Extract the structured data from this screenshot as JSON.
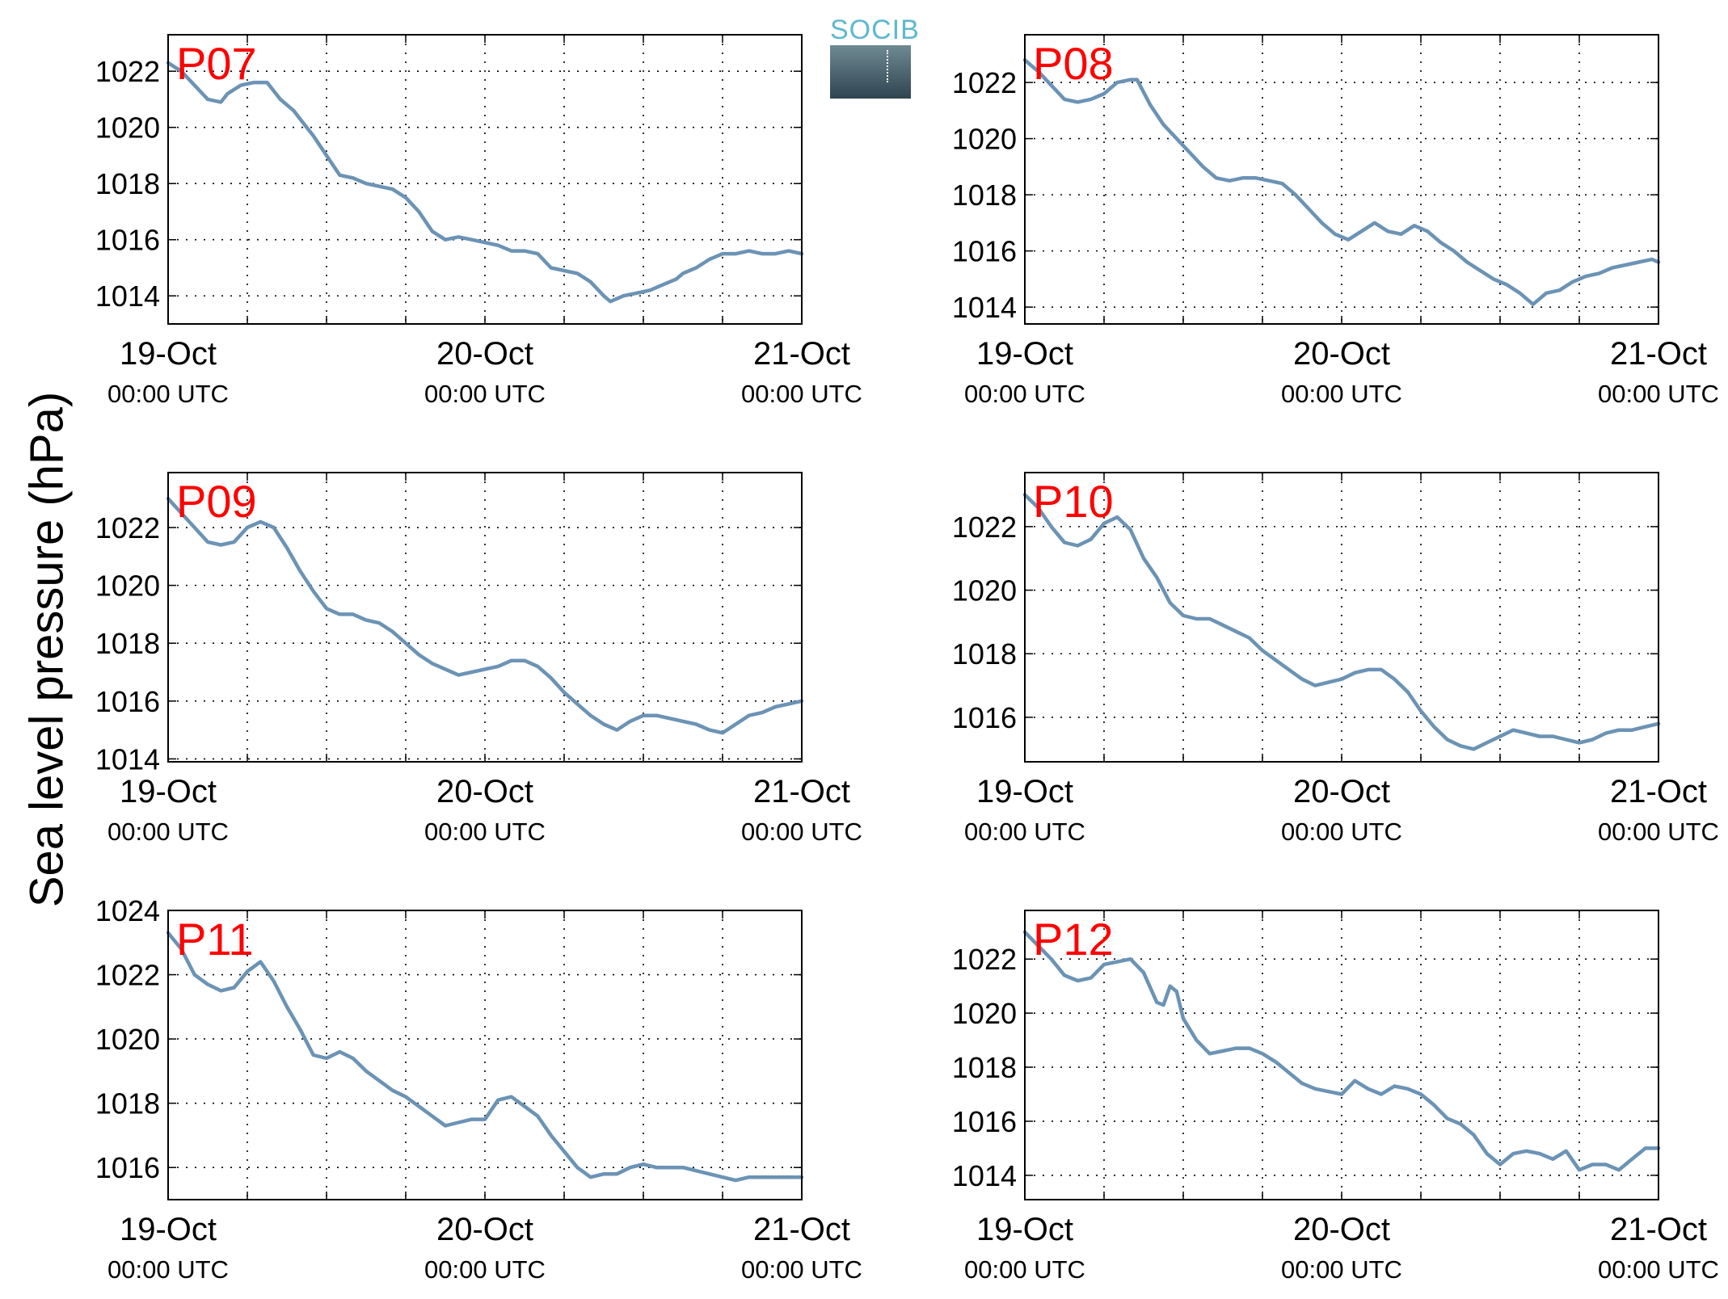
{
  "ylabel": "Sea level pressure (hPa)",
  "logo": {
    "text": "SOCIB"
  },
  "chart_data": [
    {
      "type": "line",
      "station": "P07",
      "ylim": [
        1013,
        1023.3
      ],
      "yticks": [
        "1014",
        "1016",
        "1018",
        "1020",
        "1022"
      ],
      "xticks": [
        {
          "date": "19-Oct",
          "time": "00:00 UTC"
        },
        {
          "date": "20-Oct",
          "time": "00:00 UTC"
        },
        {
          "date": "21-Oct",
          "time": "00:00 UTC"
        }
      ],
      "grid": true,
      "x_hours": [
        0,
        2,
        4,
        6,
        8,
        9,
        11,
        13,
        15,
        17,
        19,
        20,
        22,
        24,
        26,
        28,
        30,
        32,
        34,
        36,
        38,
        40,
        42,
        44,
        46,
        48,
        50,
        52,
        54,
        56,
        58,
        60,
        62,
        64,
        66,
        67,
        69,
        71,
        73,
        75,
        77,
        78,
        80,
        82,
        84,
        86,
        88,
        90,
        92,
        94,
        96
      ],
      "values": [
        1022.3,
        1022.0,
        1021.5,
        1021.0,
        1020.9,
        1021.2,
        1021.5,
        1021.6,
        1021.6,
        1021.0,
        1020.6,
        1020.3,
        1019.7,
        1019.0,
        1018.3,
        1018.2,
        1018.0,
        1017.9,
        1017.8,
        1017.5,
        1017.0,
        1016.3,
        1016.0,
        1016.1,
        1016.0,
        1015.9,
        1015.8,
        1015.6,
        1015.6,
        1015.5,
        1015.0,
        1014.9,
        1014.8,
        1014.5,
        1014.0,
        1013.8,
        1014.0,
        1014.1,
        1014.2,
        1014.4,
        1014.6,
        1014.8,
        1015.0,
        1015.3,
        1015.5,
        1015.5,
        1015.6,
        1015.5,
        1015.5,
        1015.6,
        1015.5
      ]
    },
    {
      "type": "line",
      "station": "P08",
      "ylim": [
        1013.4,
        1023.7
      ],
      "yticks": [
        "1014",
        "1016",
        "1018",
        "1020",
        "1022"
      ],
      "xticks": [
        {
          "date": "19-Oct",
          "time": "00:00 UTC"
        },
        {
          "date": "20-Oct",
          "time": "00:00 UTC"
        },
        {
          "date": "21-Oct",
          "time": "00:00 UTC"
        }
      ],
      "grid": true,
      "x_hours": [
        0,
        2,
        4,
        6,
        8,
        10,
        12,
        14,
        16,
        17,
        19,
        21,
        23,
        25,
        27,
        29,
        31,
        33,
        35,
        37,
        39,
        41,
        43,
        45,
        47,
        49,
        51,
        53,
        55,
        57,
        59,
        61,
        63,
        65,
        67,
        69,
        71,
        73,
        75,
        77,
        79,
        81,
        83,
        85,
        87,
        89,
        91,
        93,
        95,
        96
      ],
      "values": [
        1022.8,
        1022.4,
        1021.9,
        1021.4,
        1021.3,
        1021.4,
        1021.6,
        1022.0,
        1022.1,
        1022.1,
        1021.2,
        1020.5,
        1020.0,
        1019.5,
        1019.0,
        1018.6,
        1018.5,
        1018.6,
        1018.6,
        1018.5,
        1018.4,
        1018.0,
        1017.5,
        1017.0,
        1016.6,
        1016.4,
        1016.7,
        1017.0,
        1016.7,
        1016.6,
        1016.9,
        1016.7,
        1016.3,
        1016.0,
        1015.6,
        1015.3,
        1015.0,
        1014.8,
        1014.5,
        1014.1,
        1014.5,
        1014.6,
        1014.9,
        1015.1,
        1015.2,
        1015.4,
        1015.5,
        1015.6,
        1015.7,
        1015.6
      ]
    },
    {
      "type": "line",
      "station": "P09",
      "ylim": [
        1013.9,
        1023.9
      ],
      "yticks": [
        "1014",
        "1016",
        "1018",
        "1020",
        "1022"
      ],
      "xticks": [
        {
          "date": "19-Oct",
          "time": "00:00 UTC"
        },
        {
          "date": "20-Oct",
          "time": "00:00 UTC"
        },
        {
          "date": "21-Oct",
          "time": "00:00 UTC"
        }
      ],
      "grid": true,
      "x_hours": [
        0,
        2,
        4,
        6,
        8,
        10,
        12,
        14,
        16,
        18,
        20,
        22,
        24,
        26,
        28,
        30,
        32,
        34,
        36,
        38,
        40,
        42,
        44,
        46,
        48,
        50,
        52,
        54,
        56,
        58,
        60,
        62,
        64,
        66,
        68,
        70,
        72,
        74,
        76,
        78,
        80,
        82,
        84,
        86,
        88,
        90,
        92,
        94,
        96
      ],
      "values": [
        1023.0,
        1022.5,
        1022.0,
        1021.5,
        1021.4,
        1021.5,
        1022.0,
        1022.2,
        1022.0,
        1021.3,
        1020.5,
        1019.8,
        1019.2,
        1019.0,
        1019.0,
        1018.8,
        1018.7,
        1018.4,
        1018.0,
        1017.6,
        1017.3,
        1017.1,
        1016.9,
        1017.0,
        1017.1,
        1017.2,
        1017.4,
        1017.4,
        1017.2,
        1016.8,
        1016.3,
        1015.9,
        1015.5,
        1015.2,
        1015.0,
        1015.3,
        1015.5,
        1015.5,
        1015.4,
        1015.3,
        1015.2,
        1015.0,
        1014.9,
        1015.2,
        1015.5,
        1015.6,
        1015.8,
        1015.9,
        1016.0
      ]
    },
    {
      "type": "line",
      "station": "P10",
      "ylim": [
        1014.6,
        1023.7
      ],
      "yticks": [
        "1016",
        "1018",
        "1020",
        "1022"
      ],
      "xticks": [
        {
          "date": "19-Oct",
          "time": "00:00 UTC"
        },
        {
          "date": "20-Oct",
          "time": "00:00 UTC"
        },
        {
          "date": "21-Oct",
          "time": "00:00 UTC"
        }
      ],
      "grid": true,
      "x_hours": [
        0,
        2,
        4,
        6,
        8,
        10,
        12,
        14,
        16,
        18,
        20,
        22,
        24,
        26,
        28,
        30,
        32,
        34,
        36,
        38,
        40,
        42,
        44,
        46,
        48,
        50,
        52,
        54,
        56,
        58,
        60,
        62,
        64,
        66,
        68,
        70,
        72,
        74,
        76,
        78,
        80,
        82,
        84,
        86,
        88,
        90,
        92,
        94,
        96
      ],
      "values": [
        1023.0,
        1022.6,
        1022.0,
        1021.5,
        1021.4,
        1021.6,
        1022.1,
        1022.3,
        1021.9,
        1021.0,
        1020.4,
        1019.6,
        1019.2,
        1019.1,
        1019.1,
        1018.9,
        1018.7,
        1018.5,
        1018.1,
        1017.8,
        1017.5,
        1017.2,
        1017.0,
        1017.1,
        1017.2,
        1017.4,
        1017.5,
        1017.5,
        1017.2,
        1016.8,
        1016.2,
        1015.7,
        1015.3,
        1015.1,
        1015.0,
        1015.2,
        1015.4,
        1015.6,
        1015.5,
        1015.4,
        1015.4,
        1015.3,
        1015.2,
        1015.3,
        1015.5,
        1015.6,
        1015.6,
        1015.7,
        1015.8
      ]
    },
    {
      "type": "line",
      "station": "P11",
      "ylim": [
        1015.0,
        1024.0
      ],
      "yticks": [
        "1016",
        "1018",
        "1020",
        "1022",
        "1024"
      ],
      "xticks": [
        {
          "date": "19-Oct",
          "time": "00:00 UTC"
        },
        {
          "date": "20-Oct",
          "time": "00:00 UTC"
        },
        {
          "date": "21-Oct",
          "time": "00:00 UTC"
        }
      ],
      "grid": true,
      "x_hours": [
        0,
        2,
        4,
        6,
        8,
        10,
        12,
        14,
        16,
        18,
        20,
        22,
        24,
        26,
        28,
        30,
        32,
        34,
        36,
        38,
        40,
        42,
        44,
        46,
        48,
        50,
        52,
        54,
        56,
        58,
        60,
        62,
        64,
        66,
        68,
        70,
        72,
        74,
        76,
        78,
        80,
        82,
        84,
        86,
        88,
        90,
        92,
        94,
        96
      ],
      "values": [
        1023.3,
        1022.8,
        1022.0,
        1021.7,
        1021.5,
        1021.6,
        1022.1,
        1022.4,
        1021.8,
        1021.0,
        1020.3,
        1019.5,
        1019.4,
        1019.6,
        1019.4,
        1019.0,
        1018.7,
        1018.4,
        1018.2,
        1017.9,
        1017.6,
        1017.3,
        1017.4,
        1017.5,
        1017.5,
        1018.1,
        1018.2,
        1017.9,
        1017.6,
        1017.0,
        1016.5,
        1016.0,
        1015.7,
        1015.8,
        1015.8,
        1016.0,
        1016.1,
        1016.0,
        1016.0,
        1016.0,
        1015.9,
        1015.8,
        1015.7,
        1015.6,
        1015.7,
        1015.7,
        1015.7,
        1015.7,
        1015.7
      ]
    },
    {
      "type": "line",
      "station": "P12",
      "ylim": [
        1013.1,
        1023.8
      ],
      "yticks": [
        "1014",
        "1016",
        "1018",
        "1020",
        "1022"
      ],
      "xticks": [
        {
          "date": "19-Oct",
          "time": "00:00 UTC"
        },
        {
          "date": "20-Oct",
          "time": "00:00 UTC"
        },
        {
          "date": "21-Oct",
          "time": "00:00 UTC"
        }
      ],
      "grid": true,
      "x_hours": [
        0,
        2,
        4,
        6,
        8,
        10,
        12,
        14,
        16,
        18,
        20,
        21,
        22,
        23,
        24,
        26,
        28,
        30,
        32,
        34,
        36,
        38,
        40,
        42,
        44,
        46,
        48,
        50,
        52,
        54,
        56,
        58,
        60,
        62,
        64,
        66,
        68,
        70,
        72,
        74,
        76,
        78,
        80,
        82,
        84,
        86,
        88,
        90,
        92,
        94,
        96
      ],
      "values": [
        1023.0,
        1022.5,
        1022.0,
        1021.4,
        1021.2,
        1021.3,
        1021.8,
        1021.9,
        1022.0,
        1021.5,
        1020.4,
        1020.3,
        1021.0,
        1020.8,
        1019.8,
        1019.0,
        1018.5,
        1018.6,
        1018.7,
        1018.7,
        1018.5,
        1018.2,
        1017.8,
        1017.4,
        1017.2,
        1017.1,
        1017.0,
        1017.5,
        1017.2,
        1017.0,
        1017.3,
        1017.2,
        1017.0,
        1016.6,
        1016.1,
        1015.9,
        1015.5,
        1014.8,
        1014.4,
        1014.8,
        1014.9,
        1014.8,
        1014.6,
        1014.9,
        1014.2,
        1014.4,
        1014.4,
        1014.2,
        1014.6,
        1015.0,
        1015.0
      ]
    }
  ]
}
